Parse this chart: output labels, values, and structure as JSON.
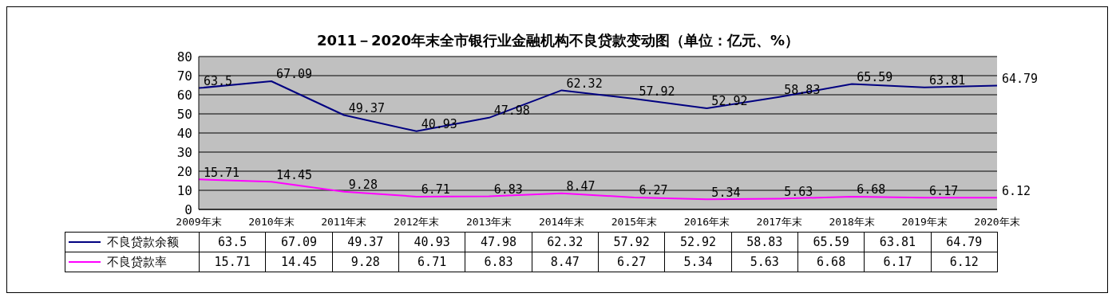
{
  "chart_data": {
    "type": "line",
    "title": "2011－2020年末全市银行业金融机构不良贷款变动图（单位：亿元、%）",
    "categories": [
      "2009年末",
      "2010年末",
      "2011年末",
      "2012年末",
      "2013年末",
      "2014年末",
      "2015年末",
      "2016年末",
      "2017年末",
      "2018年末",
      "2019年末",
      "2020年末"
    ],
    "series": [
      {
        "name": "不良贷款余额",
        "color": "#000080",
        "values": [
          63.5,
          67.09,
          49.37,
          40.93,
          47.98,
          62.32,
          57.92,
          52.92,
          58.83,
          65.59,
          63.81,
          64.79
        ]
      },
      {
        "name": "不良贷款率",
        "color": "#ff00ff",
        "values": [
          15.71,
          14.45,
          9.28,
          6.71,
          6.83,
          8.47,
          6.27,
          5.34,
          5.63,
          6.68,
          6.17,
          6.12
        ]
      }
    ],
    "annotations": [
      {
        "text": "63.5",
        "x": "2009年末",
        "y": 63.5
      },
      {
        "text": "67.09",
        "x": "2010年末",
        "y": 67.09
      },
      {
        "text": "49.37",
        "x": "2011年末",
        "y": 49.37
      },
      {
        "text": "40.93",
        "x": "2012年末",
        "y": 40.93
      },
      {
        "text": "47.98",
        "x": "2013年末",
        "y": 47.98
      },
      {
        "text": "62.32",
        "x": "2014年末",
        "y": 62.32
      },
      {
        "text": "57.92",
        "x": "2015年末",
        "y": 57.92
      },
      {
        "text": "52.92",
        "x": "2016年末",
        "y": 52.92
      },
      {
        "text": "58.83",
        "x": "2017年末",
        "y": 58.83
      },
      {
        "text": "65.59",
        "x": "2018年末",
        "y": 65.59
      },
      {
        "text": "63.81",
        "x": "2019年末",
        "y": 63.81
      },
      {
        "text": "64.79",
        "x": "2020年末",
        "y": 64.79
      },
      {
        "text": "15.71",
        "x": "2009年末",
        "y": 15.71
      },
      {
        "text": "14.45",
        "x": "2010年末",
        "y": 14.45
      },
      {
        "text": "9.28",
        "x": "2011年末",
        "y": 9.28
      },
      {
        "text": "6.71",
        "x": "2012年末",
        "y": 6.71
      },
      {
        "text": "6.83",
        "x": "2013年末",
        "y": 6.83
      },
      {
        "text": "8.47",
        "x": "2014年末",
        "y": 8.47
      },
      {
        "text": "6.27",
        "x": "2015年末",
        "y": 6.27
      },
      {
        "text": "5.34",
        "x": "2016年末",
        "y": 5.34
      },
      {
        "text": "5.63",
        "x": "2017年末",
        "y": 5.63
      },
      {
        "text": "6.68",
        "x": "2018年末",
        "y": 6.68
      },
      {
        "text": "6.17",
        "x": "2019年末",
        "y": 6.17
      },
      {
        "text": "6.12",
        "x": "2020年末",
        "y": 6.12
      }
    ],
    "ylim": [
      0,
      80
    ],
    "yticks": [
      0,
      10,
      20,
      30,
      40,
      50,
      60,
      70,
      80
    ],
    "grid": "y",
    "legend": "bottom",
    "data_labels": true,
    "marker": "none",
    "line_style": "solid"
  }
}
